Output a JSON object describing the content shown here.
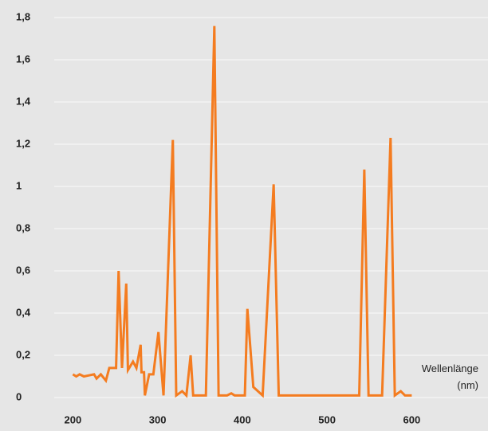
{
  "chart_data": {
    "type": "line",
    "x_label": "Wellenlänge (nm)",
    "x": [
      200,
      204,
      208,
      213,
      219,
      225,
      228,
      233,
      239,
      243,
      251,
      254,
      258,
      263,
      265,
      271,
      275,
      280,
      281,
      284,
      285,
      290,
      295,
      301,
      307,
      318,
      322,
      329,
      334,
      339,
      342,
      357,
      367,
      372,
      382,
      387,
      391,
      403,
      406,
      413,
      424,
      437,
      443,
      538,
      544,
      549,
      565,
      575,
      580,
      587,
      592,
      600
    ],
    "series": [
      {
        "color": "#f47c20",
        "values": [
          0.11,
          0.1,
          0.11,
          0.1,
          0.105,
          0.11,
          0.09,
          0.11,
          0.08,
          0.14,
          0.14,
          0.6,
          0.14,
          0.54,
          0.13,
          0.17,
          0.14,
          0.25,
          0.12,
          0.12,
          0.01,
          0.11,
          0.11,
          0.31,
          0.01,
          1.22,
          0.01,
          0.03,
          0.01,
          0.2,
          0.01,
          0.01,
          1.76,
          0.01,
          0.01,
          0.02,
          0.01,
          0.01,
          0.42,
          0.05,
          0.01,
          1.01,
          0.01,
          0.01,
          1.08,
          0.01,
          0.01,
          1.23,
          0.01,
          0.03,
          0.01,
          0.01
        ]
      }
    ],
    "xlim": [
      178,
      690
    ],
    "xticks": [
      200,
      300,
      400,
      500,
      600
    ],
    "ylim": [
      0,
      1.8
    ],
    "yticks": [
      0,
      {
        "value": 0.2,
        "label": "0,2"
      },
      {
        "value": 0.4,
        "label": "0,4"
      },
      {
        "value": 0.6,
        "label": "0,6"
      },
      {
        "value": 0.8,
        "label": "0,8"
      },
      1,
      {
        "value": 1.2,
        "label": "1,2"
      },
      {
        "value": 1.4,
        "label": "1,4"
      },
      {
        "value": 1.6,
        "label": "1,6"
      },
      {
        "value": 1.8,
        "label": "1,8"
      }
    ],
    "grid": true
  }
}
